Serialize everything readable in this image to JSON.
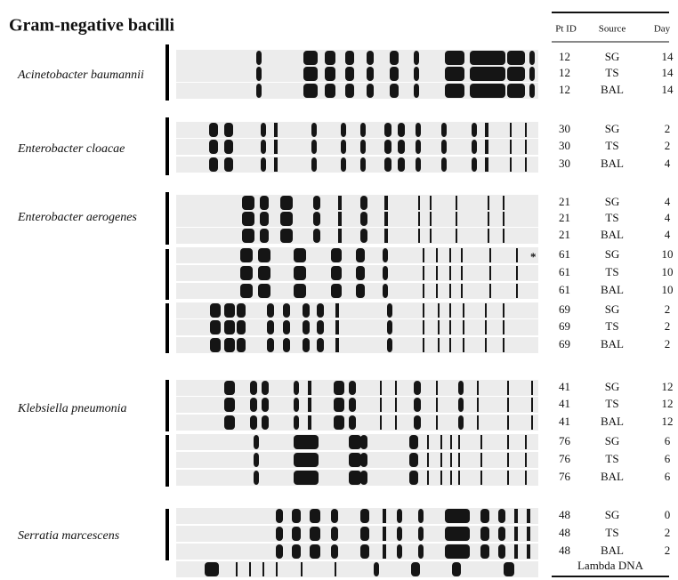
{
  "title": "Gram-negative bacilli",
  "organisms": [
    {
      "name": "Acinetobacter baumannii"
    },
    {
      "name": "Enterobacter cloacae"
    },
    {
      "name": "Enterobacter aerogenes"
    },
    {
      "name": "Klebsiella pneumonia"
    },
    {
      "name": "Serratia marcescens"
    }
  ],
  "annotation": "*",
  "table": {
    "header": [
      "Pt ID",
      "Source",
      "Day"
    ],
    "rows": [
      [
        "12",
        "SG",
        "14"
      ],
      [
        "12",
        "TS",
        "14"
      ],
      [
        "12",
        "BAL",
        "14"
      ],
      [
        "30",
        "SG",
        "2"
      ],
      [
        "30",
        "TS",
        "2"
      ],
      [
        "30",
        "BAL",
        "4"
      ],
      [
        "21",
        "SG",
        "4"
      ],
      [
        "21",
        "TS",
        "4"
      ],
      [
        "21",
        "BAL",
        "4"
      ],
      [
        "61",
        "SG",
        "10"
      ],
      [
        "61",
        "TS",
        "10"
      ],
      [
        "61",
        "BAL",
        "10"
      ],
      [
        "69",
        "SG",
        "2"
      ],
      [
        "69",
        "TS",
        "2"
      ],
      [
        "69",
        "BAL",
        "2"
      ],
      [
        "41",
        "SG",
        "12"
      ],
      [
        "41",
        "TS",
        "12"
      ],
      [
        "41",
        "BAL",
        "12"
      ],
      [
        "76",
        "SG",
        "6"
      ],
      [
        "76",
        "TS",
        "6"
      ],
      [
        "76",
        "BAL",
        "6"
      ],
      [
        "48",
        "SG",
        "0"
      ],
      [
        "48",
        "TS",
        "2"
      ],
      [
        "48",
        "BAL",
        "2"
      ]
    ],
    "footer": "Lambda DNA"
  }
}
